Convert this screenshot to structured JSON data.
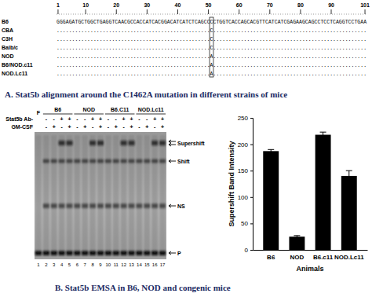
{
  "panel_a": {
    "ruler": [
      1,
      10,
      20,
      30,
      40,
      50,
      60,
      70,
      80,
      90,
      101
    ],
    "rows": [
      {
        "label": "B6",
        "sequence": "GGGAGATGCTGGCTGAGGTCAACGCCACCATCACGGACATCATCTCAGCCCCTGGTCACCAGCACGTTCATCATCGAGAAGCAGCCTCCTCAGGTCCTGAA"
      },
      {
        "label": "CBA",
        "sequence": "..................................................C.................................................."
      },
      {
        "label": "C3H",
        "sequence": "..................................................C.................................................."
      },
      {
        "label": "Balb/c",
        "sequence": "..................................................C.................................................."
      },
      {
        "label": "NOD",
        "sequence": "..................................................A.................................................."
      },
      {
        "label": "B6/NOD.c11",
        "sequence": "..................................................A.................................................."
      },
      {
        "label": "NOD.Lc11",
        "sequence": "..................................................A.................................................."
      }
    ],
    "caption": "A. Stat5b alignment around the C1462A mutation in different strains of mice"
  },
  "gel": {
    "free_label": "F",
    "groups": [
      {
        "label": "B6",
        "lanes": [
          2,
          3,
          4,
          5
        ]
      },
      {
        "label": "NOD",
        "lanes": [
          6,
          7,
          8,
          9
        ]
      },
      {
        "label": "B6.C11",
        "lanes": [
          10,
          11,
          12,
          13
        ]
      },
      {
        "label": "NOD.Lc11",
        "lanes": [
          14,
          15,
          16,
          17
        ]
      }
    ],
    "row_labels": [
      "Stat5b Ab-",
      "GM-CSF"
    ],
    "signs": [
      [
        "-",
        "-",
        "+",
        "+",
        "-",
        "-",
        "+",
        "+",
        "-",
        "-",
        "+",
        "+",
        "-",
        "-",
        "+",
        "+"
      ],
      [
        "-",
        "+",
        "-",
        "+",
        "-",
        "+",
        "-",
        "+",
        "-",
        "+",
        "-",
        "+",
        "-",
        "+",
        "-",
        "+"
      ]
    ],
    "lane_numbers": [
      1,
      2,
      3,
      4,
      5,
      6,
      7,
      8,
      9,
      10,
      11,
      12,
      13,
      14,
      15,
      16,
      17
    ],
    "band_labels": [
      "Supershift",
      "Shift",
      "NS",
      "P"
    ]
  },
  "chart_data": {
    "type": "bar",
    "categories": [
      "B6",
      "NOD",
      "B6.c11",
      "NOD.Lc11"
    ],
    "values": [
      187,
      25,
      218,
      140
    ],
    "errors": [
      3,
      2,
      5,
      10
    ],
    "color": "#000000",
    "ylim": [
      0,
      250
    ],
    "yticks": [
      0,
      50,
      100,
      150,
      200,
      250
    ],
    "xlabel": "Animals",
    "ylabel": "Supershift Band Intensity"
  },
  "caption_b": "B. Stat5b EMSA in B6, NOD and congenic mice"
}
